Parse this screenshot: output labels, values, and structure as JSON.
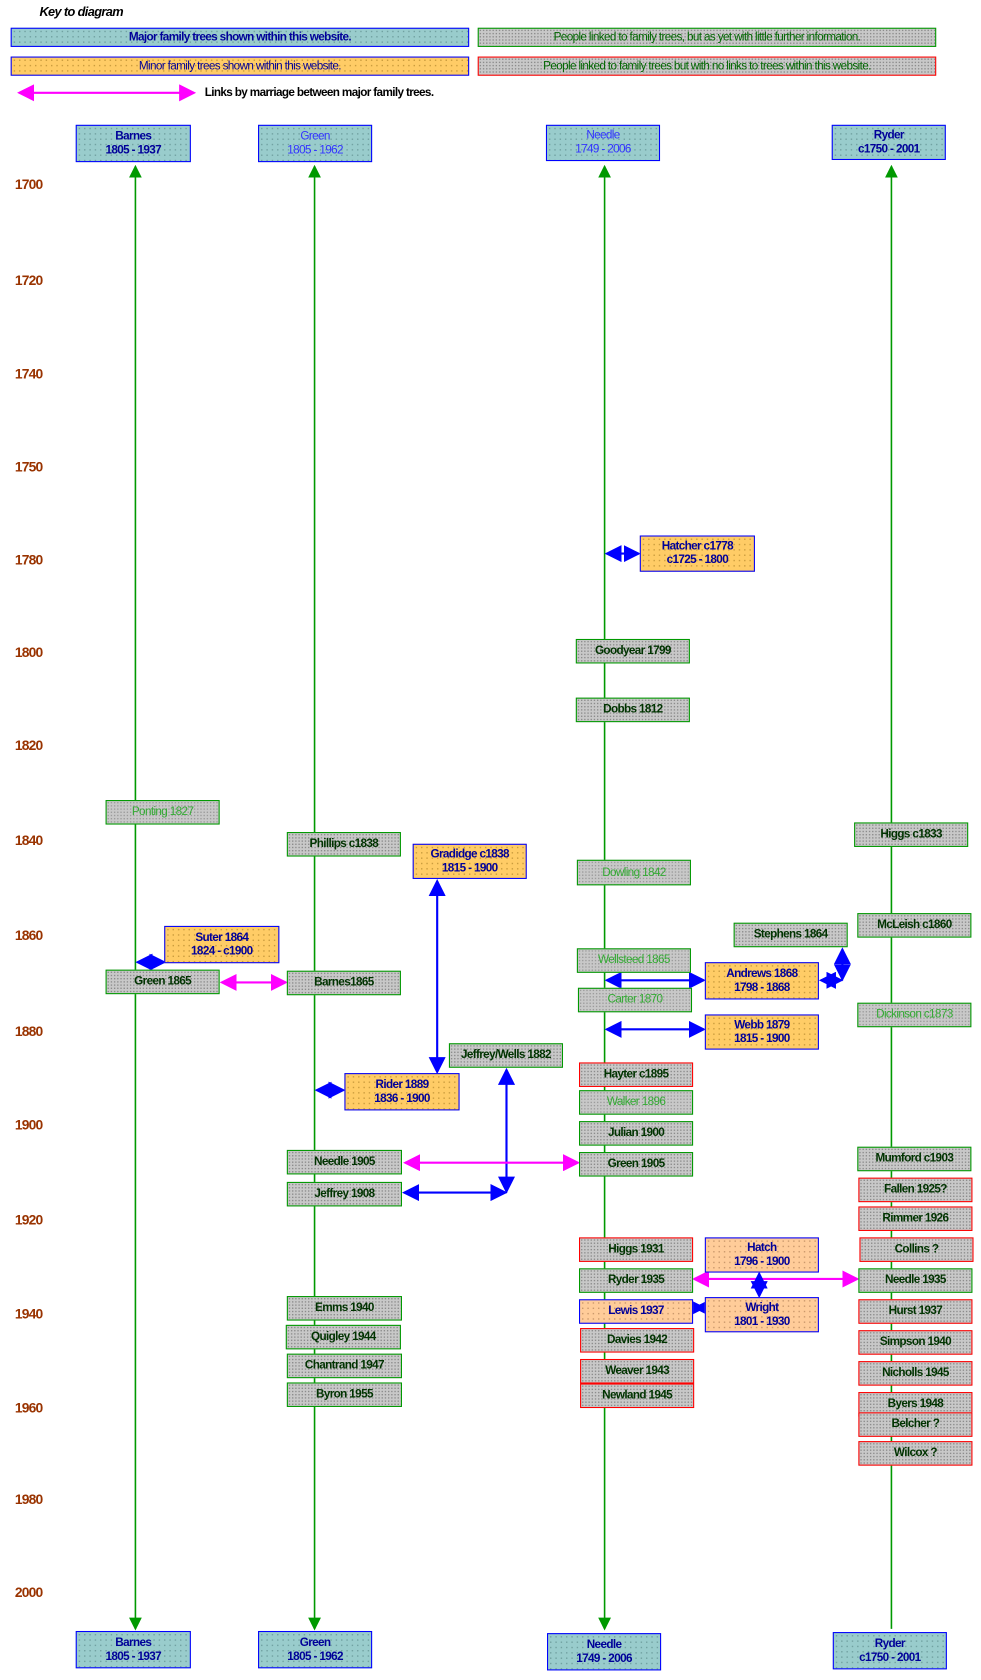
{
  "key": {
    "title": "Key to diagram",
    "major": "Major family trees shown within this website.",
    "minor": "Minor family trees shown within this website.",
    "linked_little_info": "People linked to family trees, but as yet with little further information.",
    "linked_no_links": "People linked to family trees but with no links to trees within this website.",
    "marriage_links": "Links by marriage between major family trees."
  },
  "colors": {
    "major": "#99cccc",
    "minor": "#ffcc66",
    "grey": "#c8c8c8",
    "line_green": "#009900",
    "link_blue": "#0000ff",
    "marriage_magenta": "#ff00ff",
    "year": "#993300"
  },
  "trees": [
    {
      "name": "Barnes",
      "dates": "1805 - 1937"
    },
    {
      "name": "Green",
      "dates": "1805 - 1962"
    },
    {
      "name": "Needle",
      "dates": "1749 - 2006"
    },
    {
      "name": "Ryder",
      "dates": "c1750 - 2001"
    }
  ],
  "years": [
    "1700",
    "1720",
    "1740",
    "1750",
    "1780",
    "1800",
    "1820",
    "1840",
    "1860",
    "1880",
    "1900",
    "1920",
    "1940",
    "1960",
    "1980",
    "2000"
  ],
  "nodes": [
    {
      "type": "minor",
      "l1": "Hatcher c1778",
      "l2": "c1725 - 1800"
    },
    {
      "type": "grey",
      "l1": "Goodyear 1799"
    },
    {
      "type": "grey",
      "l1": "Dobbs 1812"
    },
    {
      "type": "grey-light",
      "l1": "Ponting 1827"
    },
    {
      "type": "grey",
      "l1": "Phillips c1838"
    },
    {
      "type": "minor",
      "l1": "Gradidge c1838",
      "l2": "1815 - 1900"
    },
    {
      "type": "grey",
      "l1": "Higgs c1833"
    },
    {
      "type": "grey-light",
      "l1": "Dowling 1842"
    },
    {
      "type": "grey",
      "l1": "Stephens 1864"
    },
    {
      "type": "grey",
      "l1": "McLeish c1860"
    },
    {
      "type": "minor",
      "l1": "Suter 1864",
      "l2": "1824 - c1900"
    },
    {
      "type": "grey-light",
      "l1": "Wellsteed 1865"
    },
    {
      "type": "minor",
      "l1": "Andrews 1868",
      "l2": "1798 - 1868"
    },
    {
      "type": "grey",
      "l1": "Green 1865"
    },
    {
      "type": "grey",
      "l1": "Barnes1865"
    },
    {
      "type": "grey-light",
      "l1": "Carter 1870"
    },
    {
      "type": "grey-light",
      "l1": "Dickinson c1873"
    },
    {
      "type": "minor",
      "l1": "Webb 1879",
      "l2": "1815 - 1900"
    },
    {
      "type": "grey",
      "l1": "Jeffrey/Wells 1882"
    },
    {
      "type": "red",
      "l1": "Hayter c1895"
    },
    {
      "type": "minor",
      "l1": "Rider 1889",
      "l2": "1836 - 1900"
    },
    {
      "type": "grey-light",
      "l1": "Walker 1896"
    },
    {
      "type": "grey",
      "l1": "Julian 1900"
    },
    {
      "type": "grey",
      "l1": "Mumford c1903"
    },
    {
      "type": "grey",
      "l1": "Needle 1905"
    },
    {
      "type": "grey",
      "l1": "Green 1905"
    },
    {
      "type": "red",
      "l1": "Fallen 1925?"
    },
    {
      "type": "grey",
      "l1": "Jeffrey 1908"
    },
    {
      "type": "red",
      "l1": "Rimmer 1926"
    },
    {
      "type": "red",
      "l1": "Higgs 1931"
    },
    {
      "type": "minor-light",
      "l1": "Hatch",
      "l2": "1796 - 1900"
    },
    {
      "type": "red",
      "l1": "Collins ?"
    },
    {
      "type": "grey",
      "l1": "Ryder 1935"
    },
    {
      "type": "grey",
      "l1": "Needle 1935"
    },
    {
      "type": "minor-light",
      "l1": "Lewis 1937"
    },
    {
      "type": "minor-light",
      "l1": "Wright",
      "l2": "1801 - 1930"
    },
    {
      "type": "red",
      "l1": "Hurst 1937"
    },
    {
      "type": "red",
      "l1": "Davies 1942"
    },
    {
      "type": "red",
      "l1": "Simpson 1940"
    },
    {
      "type": "grey",
      "l1": "Emms 1940"
    },
    {
      "type": "grey",
      "l1": "Quigley 1944"
    },
    {
      "type": "grey",
      "l1": "Chantrand 1947"
    },
    {
      "type": "grey",
      "l1": "Byron 1955"
    },
    {
      "type": "red",
      "l1": "Weaver 1943"
    },
    {
      "type": "red",
      "l1": "Nicholls 1945"
    },
    {
      "type": "red",
      "l1": "Newland 1945"
    },
    {
      "type": "red",
      "l1": "Byers 1948"
    },
    {
      "type": "red",
      "l1": "Belcher ?"
    },
    {
      "type": "red",
      "l1": "Wilcox ?"
    }
  ]
}
